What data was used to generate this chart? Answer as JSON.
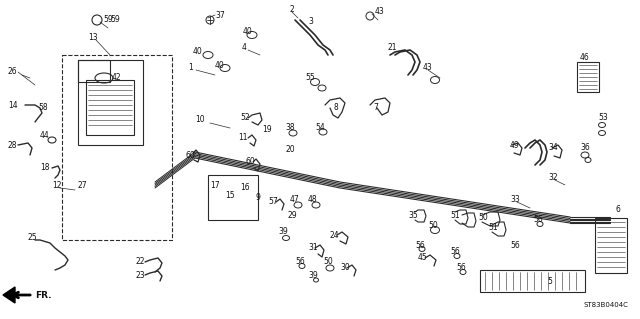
{
  "background_color": "#ffffff",
  "diagram_code": "ST83B0404C",
  "figsize": [
    6.4,
    3.19
  ],
  "dpi": 100,
  "line_color": "#2a2a2a",
  "text_color": "#111111",
  "font_size": 5.5
}
